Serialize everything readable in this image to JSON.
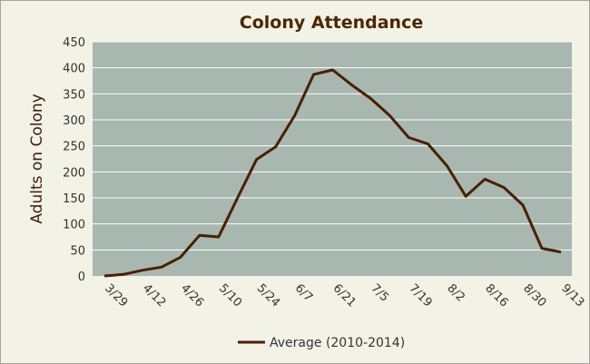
{
  "chart_data": {
    "type": "line",
    "title": "Colony Attendance",
    "ylabel": "Adults on Colony",
    "xlabel": "",
    "ylim": [
      0,
      450
    ],
    "yticks": [
      0,
      50,
      100,
      150,
      200,
      250,
      300,
      350,
      400,
      450
    ],
    "grid": true,
    "legend_placement": "bottom",
    "x_tick_labels": [
      "3/29",
      "4/12",
      "4/26",
      "5/10",
      "5/24",
      "6/7",
      "6/21",
      "7/5",
      "7/19",
      "8/2",
      "8/16",
      "8/30",
      "9/13"
    ],
    "x": [
      "3/29",
      "4/5",
      "4/12",
      "4/19",
      "4/26",
      "5/3",
      "5/10",
      "5/17",
      "5/24",
      "5/31",
      "6/7",
      "6/14",
      "6/21",
      "6/28",
      "7/5",
      "7/12",
      "7/19",
      "7/26",
      "8/2",
      "8/9",
      "8/16",
      "8/23",
      "8/30",
      "9/6",
      "9/13"
    ],
    "series": [
      {
        "name": "Average (2010-2014)",
        "color": "#4a1f00",
        "values": [
          0,
          3,
          11,
          17,
          36,
          78,
          75,
          150,
          224,
          248,
          308,
          387,
          396,
          367,
          341,
          308,
          266,
          254,
          212,
          153,
          186,
          170,
          136,
          53,
          46
        ]
      }
    ]
  },
  "colors": {
    "plot_background": "#a8b8b0",
    "gridline": "#ffffff",
    "frame_background": "#f2f2e6"
  }
}
